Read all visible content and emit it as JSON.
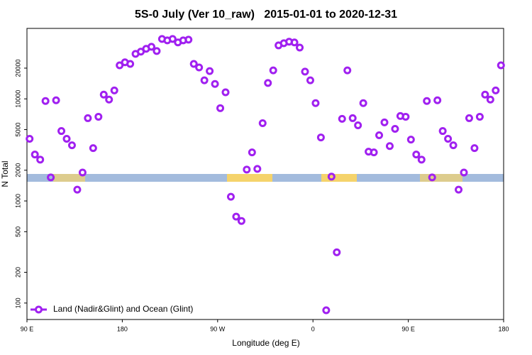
{
  "chart_data": {
    "type": "scatter",
    "title": "5S-0 July (Ver 10_raw)   2015-01-01 to 2020-12-31",
    "x_label": "Longitude (deg E)",
    "y_label": "N Total",
    "log_y": true,
    "legend": "bottom-left",
    "xlim": [
      90,
      540
    ],
    "ylim": [
      69,
      49000
    ],
    "xticks": [
      {
        "value": 90,
        "label": "90 E"
      },
      {
        "value": 180,
        "label": "180"
      },
      {
        "value": 270,
        "label": "90 W"
      },
      {
        "value": 360,
        "label": "0"
      },
      {
        "value": 450,
        "label": "90 E"
      },
      {
        "value": 540,
        "label": "180"
      }
    ],
    "yticks": [
      100,
      200,
      500,
      1000,
      2000,
      5000,
      10000,
      20000
    ],
    "series": [
      {
        "name": "Land (Nadir&Glint) and Ocean (Glint)",
        "color": "#a020f0",
        "x": [
          92.5,
          97.5,
          102.5,
          107.5,
          112.5,
          117.5,
          122.5,
          127.5,
          132.5,
          137.5,
          142.5,
          147.5,
          152.5,
          157.5,
          162.5,
          167.5,
          172.5,
          177.5,
          182.5,
          187.5,
          192.5,
          197.5,
          202.5,
          207.5,
          212.5,
          217.5,
          222.5,
          227.5,
          232.5,
          237.5,
          242.5,
          247.5,
          252.5,
          257.5,
          262.5,
          267.5,
          272.5,
          277.5,
          282.5,
          287.5,
          292.5,
          297.5,
          302.5,
          307.5,
          312.5,
          317.5,
          322.5,
          327.5,
          332.5,
          337.5,
          342.5,
          347.5,
          352.5,
          357.5,
          362.5,
          367.5,
          372.5,
          377.5,
          382.5,
          387.5,
          392.5,
          397.5,
          402.5,
          407.5,
          412.5,
          417.5,
          422.5,
          427.5,
          432.5,
          437.5,
          442.5,
          447.5,
          452.5,
          457.5,
          462.5,
          467.5,
          472.5,
          477.5,
          482.5,
          487.5,
          492.5,
          497.5,
          502.5,
          507.5,
          512.5,
          517.5,
          522.5,
          527.5,
          532.5,
          537.5
        ],
        "values": [
          4060,
          2850,
          2540,
          9530,
          1700,
          9680,
          4840,
          4060,
          3510,
          1290,
          1900,
          6470,
          3290,
          6680,
          11000,
          9840,
          12100,
          21300,
          22800,
          22000,
          27600,
          29000,
          30900,
          32400,
          29400,
          38600,
          37400,
          38600,
          35700,
          37400,
          38000,
          22000,
          20300,
          15200,
          18700,
          14000,
          8110,
          11600,
          1100,
          702,
          637,
          2030,
          2990,
          2060,
          5780,
          14300,
          19000,
          33400,
          35100,
          36300,
          35700,
          31800,
          18500,
          15200,
          9080,
          4190,
          85,
          1730,
          314,
          6370,
          19000,
          6470,
          5510,
          9080,
          3040,
          2990,
          4400,
          5880,
          3450,
          5080,
          6790,
          6680,
          3990,
          2850,
          2540,
          9530,
          1700,
          9680,
          4840,
          4060,
          3510,
          1290,
          1900,
          6470,
          3290,
          6680,
          11000,
          9840,
          12100,
          21300
        ]
      }
    ]
  }
}
